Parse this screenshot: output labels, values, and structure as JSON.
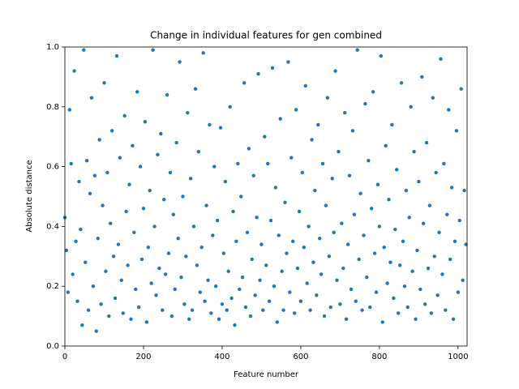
{
  "chart_data": {
    "type": "scatter",
    "title": "Change in individual features for gen combined",
    "x_label": "Feature number",
    "y_label": "Absolute distance",
    "xlim": [
      0,
      1023
    ],
    "ylim": [
      0,
      1
    ],
    "xticks": [
      0,
      200,
      400,
      600,
      800,
      1000
    ],
    "yticks": [
      {
        "value": 0,
        "label": "0.0"
      },
      0.2,
      0.4,
      0.6,
      0.8,
      {
        "value": 1,
        "label": "1.0"
      }
    ],
    "color": "#1f77b4",
    "x": [
      0,
      4,
      8,
      12,
      16,
      20,
      24,
      28,
      32,
      36,
      40,
      44,
      48,
      52,
      56,
      60,
      64,
      68,
      72,
      76,
      80,
      84,
      88,
      92,
      96,
      100,
      104,
      108,
      112,
      116,
      120,
      124,
      128,
      132,
      136,
      140,
      144,
      148,
      152,
      156,
      160,
      164,
      168,
      172,
      176,
      180,
      184,
      188,
      192,
      196,
      200,
      204,
      208,
      212,
      216,
      220,
      224,
      228,
      232,
      236,
      240,
      244,
      248,
      252,
      256,
      260,
      264,
      268,
      272,
      276,
      280,
      284,
      288,
      292,
      296,
      300,
      304,
      308,
      312,
      316,
      320,
      324,
      328,
      332,
      336,
      340,
      344,
      348,
      352,
      356,
      360,
      364,
      368,
      372,
      376,
      380,
      384,
      388,
      392,
      396,
      400,
      404,
      408,
      412,
      416,
      420,
      424,
      428,
      432,
      436,
      440,
      444,
      448,
      452,
      456,
      460,
      464,
      468,
      472,
      476,
      480,
      484,
      488,
      492,
      496,
      500,
      504,
      508,
      512,
      516,
      520,
      524,
      528,
      532,
      536,
      540,
      544,
      548,
      552,
      556,
      560,
      564,
      568,
      572,
      576,
      580,
      584,
      588,
      592,
      596,
      600,
      604,
      608,
      612,
      616,
      620,
      624,
      628,
      632,
      636,
      640,
      644,
      648,
      652,
      656,
      660,
      664,
      668,
      672,
      676,
      680,
      684,
      688,
      692,
      696,
      700,
      704,
      708,
      712,
      716,
      720,
      724,
      728,
      732,
      736,
      740,
      744,
      748,
      752,
      756,
      760,
      764,
      768,
      772,
      776,
      780,
      784,
      788,
      792,
      796,
      800,
      804,
      808,
      812,
      816,
      820,
      824,
      828,
      832,
      836,
      840,
      844,
      848,
      852,
      856,
      860,
      864,
      868,
      872,
      876,
      880,
      884,
      888,
      892,
      896,
      900,
      904,
      908,
      912,
      916,
      920,
      924,
      928,
      932,
      936,
      940,
      944,
      948,
      952,
      956,
      960,
      964,
      968,
      972,
      976,
      980,
      984,
      988,
      992,
      996,
      1000,
      1004,
      1008,
      1012,
      1016,
      1020
    ],
    "values": [
      0.43,
      0.32,
      0.18,
      0.79,
      0.61,
      0.24,
      0.92,
      0.35,
      0.15,
      0.55,
      0.39,
      0.07,
      0.99,
      0.28,
      0.62,
      0.12,
      0.51,
      0.83,
      0.2,
      0.57,
      0.05,
      0.36,
      0.69,
      0.14,
      0.47,
      0.88,
      0.25,
      0.58,
      0.1,
      0.41,
      0.72,
      0.3,
      0.16,
      0.97,
      0.34,
      0.63,
      0.22,
      0.11,
      0.77,
      0.45,
      0.27,
      0.54,
      0.09,
      0.67,
      0.38,
      0.19,
      0.85,
      0.13,
      0.6,
      0.29,
      0.46,
      0.75,
      0.08,
      0.33,
      0.52,
      0.21,
      0.99,
      0.4,
      0.17,
      0.64,
      0.26,
      0.71,
      0.12,
      0.49,
      0.24,
      0.84,
      0.31,
      0.58,
      0.1,
      0.44,
      0.19,
      0.68,
      0.36,
      0.95,
      0.23,
      0.5,
      0.14,
      0.3,
      0.78,
      0.09,
      0.56,
      0.12,
      0.4,
      0.86,
      0.27,
      0.65,
      0.18,
      0.33,
      0.98,
      0.15,
      0.47,
      0.22,
      0.74,
      0.11,
      0.37,
      0.6,
      0.2,
      0.42,
      0.09,
      0.73,
      0.14,
      0.31,
      0.55,
      0.12,
      0.25,
      0.8,
      0.16,
      0.45,
      0.07,
      0.35,
      0.61,
      0.19,
      0.5,
      0.23,
      0.88,
      0.13,
      0.38,
      0.66,
      0.1,
      0.29,
      0.57,
      0.17,
      0.43,
      0.91,
      0.22,
      0.34,
      0.12,
      0.7,
      0.27,
      0.61,
      0.15,
      0.42,
      0.93,
      0.2,
      0.53,
      0.08,
      0.37,
      0.76,
      0.25,
      0.12,
      0.48,
      0.31,
      0.95,
      0.18,
      0.63,
      0.35,
      0.11,
      0.79,
      0.26,
      0.45,
      0.15,
      0.58,
      0.33,
      0.87,
      0.21,
      0.4,
      0.12,
      0.69,
      0.28,
      0.52,
      0.17,
      0.74,
      0.36,
      0.24,
      0.61,
      0.1,
      0.47,
      0.83,
      0.3,
      0.13,
      0.56,
      0.38,
      0.92,
      0.22,
      0.65,
      0.14,
      0.41,
      0.26,
      0.78,
      0.09,
      0.34,
      0.57,
      0.19,
      0.72,
      0.44,
      0.15,
      0.99,
      0.29,
      0.51,
      0.12,
      0.37,
      0.81,
      0.23,
      0.62,
      0.13,
      0.46,
      0.85,
      0.31,
      0.18,
      0.54,
      0.4,
      0.97,
      0.08,
      0.33,
      0.67,
      0.21,
      0.49,
      0.28,
      0.74,
      0.16,
      0.39,
      0.59,
      0.11,
      0.27,
      0.88,
      0.35,
      0.2,
      0.52,
      0.13,
      0.43,
      0.8,
      0.25,
      0.65,
      0.09,
      0.32,
      0.55,
      0.19,
      0.9,
      0.41,
      0.14,
      0.68,
      0.26,
      0.47,
      0.11,
      0.83,
      0.3,
      0.58,
      0.17,
      0.38,
      0.96,
      0.24,
      0.61,
      0.12,
      0.44,
      0.79,
      0.29,
      0.53,
      0.09,
      0.35,
      0.72,
      0.18,
      0.42,
      0.86,
      0.22,
      0.52,
      0.34
    ]
  }
}
